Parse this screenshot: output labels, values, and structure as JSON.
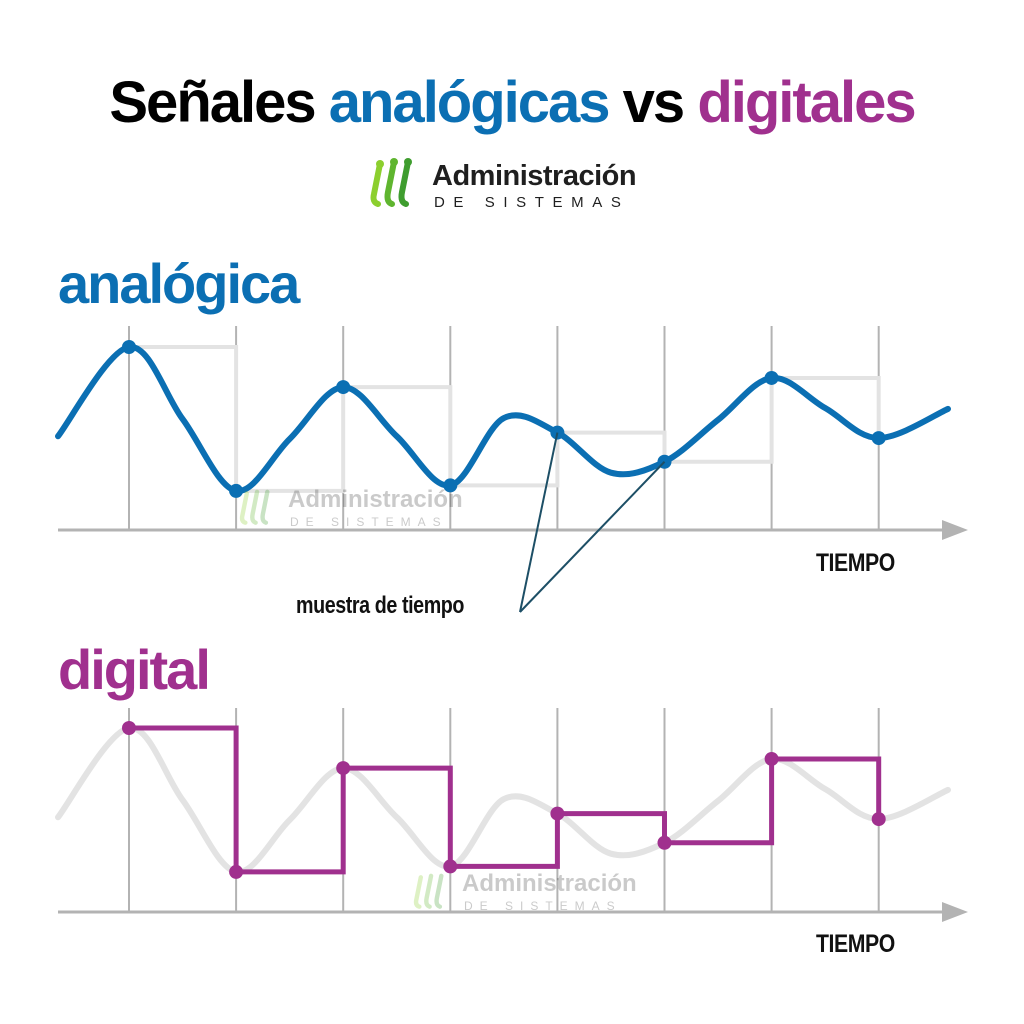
{
  "title": {
    "word1": "Señales ",
    "word2": "analógicas",
    "word3": " vs ",
    "word4": "digitales"
  },
  "logo": {
    "name": "Administración",
    "subtitle": "DE SISTEMAS",
    "icon": "green-signal-bars-icon"
  },
  "watermark": {
    "name": "Administración",
    "subtitle": "DE SISTEMAS"
  },
  "colors": {
    "analog": "#0b6fb3",
    "digital": "#a0308e",
    "grid": "#b3b3b3",
    "ghost": "#e3e3e3",
    "annotation": "#1d4f66",
    "logo_green_light": "#8ccf2e",
    "logo_green_dark": "#3f9d2f"
  },
  "sections": {
    "analog_label": "analógica",
    "digital_label": "digital"
  },
  "axis": {
    "time_label": "TIEMPO"
  },
  "annotation": {
    "label": "muestra de tiempo"
  },
  "chart_data": {
    "type": "line",
    "sample_count": 8,
    "analog_samples": [
      0.84,
      0.05,
      0.62,
      0.08,
      0.37,
      0.21,
      0.67,
      0.34
    ],
    "digital_levels": [
      0.84,
      0.05,
      0.62,
      0.08,
      0.37,
      0.21,
      0.67,
      0.34
    ]
  }
}
